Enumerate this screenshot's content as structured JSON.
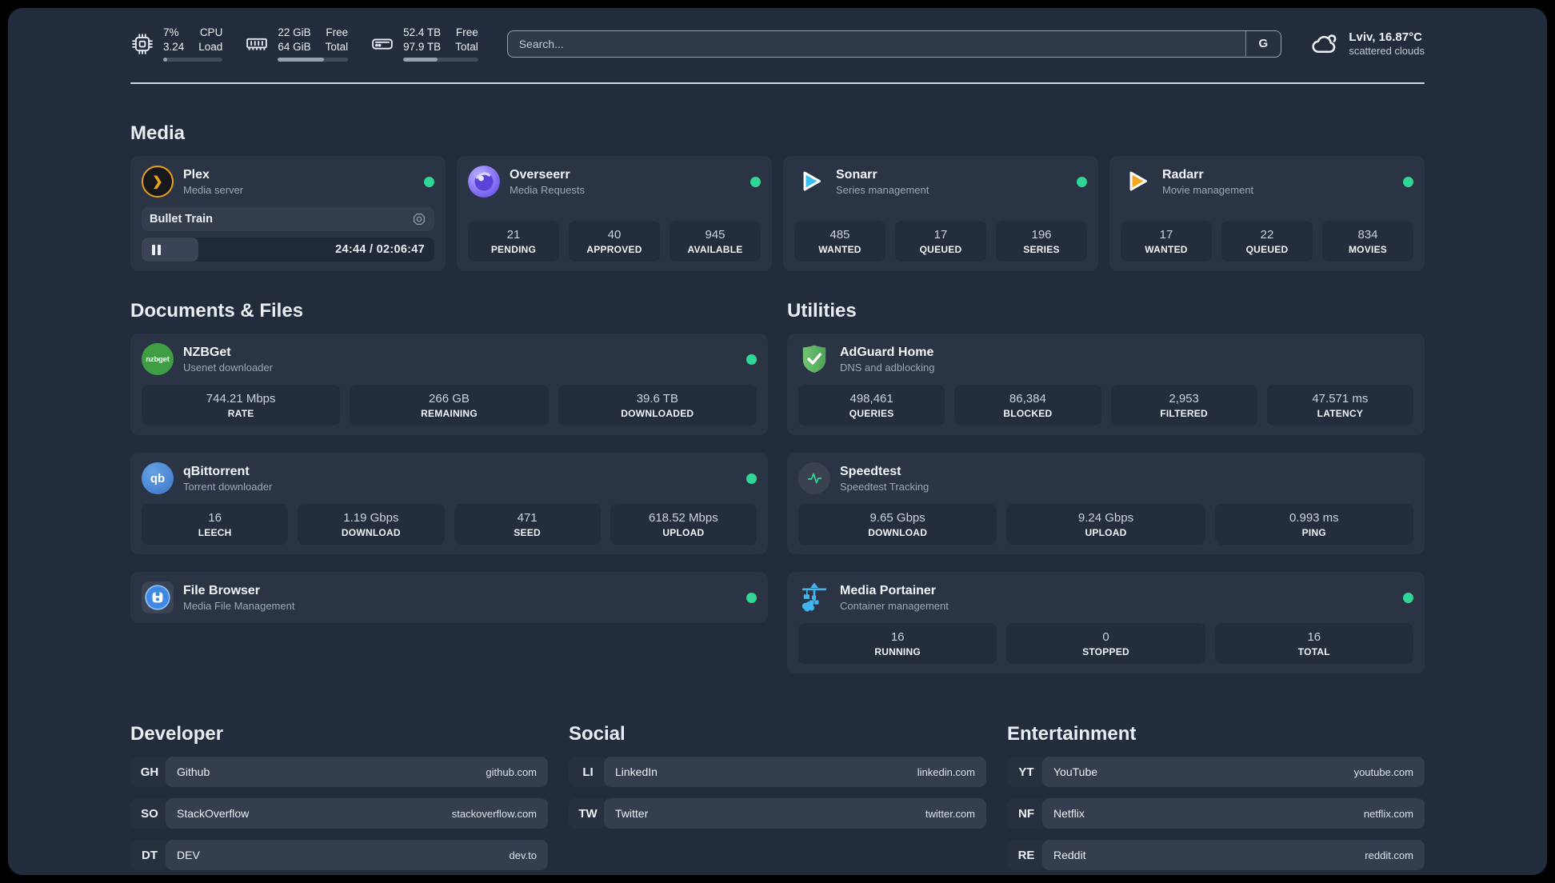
{
  "colors": {
    "background": "#222c3c",
    "card": "#2b3445",
    "stat_box": "#242d3c",
    "status_online_green": "#2fd695",
    "bar_fill": "#97a1b2",
    "plex_amber": "#e8a11b",
    "sonarr_blue": "#39c0f0",
    "radarr_amber": "#f7a823",
    "portainer_blue": "#41b5e9"
  },
  "header": {
    "cpu": {
      "value": "7%",
      "sub": "3.24",
      "label": "CPU",
      "sublabel": "Load",
      "progress": 7
    },
    "memory": {
      "value": "22 GiB",
      "sub": "64 GiB",
      "label": "Free",
      "sublabel": "Total",
      "progress": 66
    },
    "disk": {
      "value": "52.4 TB",
      "sub": "97.9 TB",
      "label": "Free",
      "sublabel": "Total",
      "progress": 46
    },
    "search": {
      "placeholder": "Search...",
      "button": "G"
    },
    "weather": {
      "location": "Lviv, 16.87°C",
      "condition": "scattered clouds"
    }
  },
  "sections": {
    "media": {
      "title": "Media",
      "cards": [
        {
          "name": "Plex",
          "desc": "Media server",
          "online": true,
          "icon": "plex-icon",
          "player": {
            "title": "Bullet Train",
            "time": "24:44 / 02:06:47",
            "progress": 19.5
          }
        },
        {
          "name": "Overseerr",
          "desc": "Media Requests",
          "online": true,
          "icon": "overseerr-icon",
          "stats": [
            {
              "value": "21",
              "label": "PENDING"
            },
            {
              "value": "40",
              "label": "APPROVED"
            },
            {
              "value": "945",
              "label": "AVAILABLE"
            }
          ]
        },
        {
          "name": "Sonarr",
          "desc": "Series management",
          "online": true,
          "icon": "sonarr-icon",
          "stats": [
            {
              "value": "485",
              "label": "WANTED"
            },
            {
              "value": "17",
              "label": "QUEUED"
            },
            {
              "value": "196",
              "label": "SERIES"
            }
          ]
        },
        {
          "name": "Radarr",
          "desc": "Movie management",
          "online": true,
          "icon": "radarr-icon",
          "stats": [
            {
              "value": "17",
              "label": "WANTED"
            },
            {
              "value": "22",
              "label": "QUEUED"
            },
            {
              "value": "834",
              "label": "MOVIES"
            }
          ]
        }
      ]
    },
    "documents": {
      "title": "Documents & Files",
      "cards": [
        {
          "name": "NZBGet",
          "desc": "Usenet downloader",
          "online": true,
          "icon": "nzbget-icon",
          "icon_text": "nzbget",
          "stats": [
            {
              "value": "744.21 Mbps",
              "label": "RATE"
            },
            {
              "value": "266 GB",
              "label": "REMAINING"
            },
            {
              "value": "39.6 TB",
              "label": "DOWNLOADED"
            }
          ]
        },
        {
          "name": "qBittorrent",
          "desc": "Torrent downloader",
          "online": true,
          "icon": "qbittorrent-icon",
          "icon_text": "qb",
          "stats": [
            {
              "value": "16",
              "label": "LEECH"
            },
            {
              "value": "1.19 Gbps",
              "label": "DOWNLOAD"
            },
            {
              "value": "471",
              "label": "SEED"
            },
            {
              "value": "618.52 Mbps",
              "label": "UPLOAD"
            }
          ]
        },
        {
          "name": "File Browser",
          "desc": "Media File Management",
          "online": true,
          "icon": "filebrowser-icon"
        }
      ]
    },
    "utilities": {
      "title": "Utilities",
      "cards": [
        {
          "name": "AdGuard Home",
          "desc": "DNS and adblocking",
          "icon": "adguard-icon",
          "stats": [
            {
              "value": "498,461",
              "label": "QUERIES"
            },
            {
              "value": "86,384",
              "label": "BLOCKED"
            },
            {
              "value": "2,953",
              "label": "FILTERED"
            },
            {
              "value": "47.571 ms",
              "label": "LATENCY"
            }
          ]
        },
        {
          "name": "Speedtest",
          "desc": "Speedtest Tracking",
          "icon": "speedtest-icon",
          "stats": [
            {
              "value": "9.65 Gbps",
              "label": "DOWNLOAD"
            },
            {
              "value": "9.24 Gbps",
              "label": "UPLOAD"
            },
            {
              "value": "0.993 ms",
              "label": "PING"
            }
          ]
        },
        {
          "name": "Media Portainer",
          "desc": "Container management",
          "online": true,
          "icon": "portainer-icon",
          "stats": [
            {
              "value": "16",
              "label": "RUNNING"
            },
            {
              "value": "0",
              "label": "STOPPED"
            },
            {
              "value": "16",
              "label": "TOTAL"
            }
          ]
        }
      ]
    },
    "developer": {
      "title": "Developer",
      "links": [
        {
          "abbr": "GH",
          "name": "Github",
          "url": "github.com"
        },
        {
          "abbr": "SO",
          "name": "StackOverflow",
          "url": "stackoverflow.com"
        },
        {
          "abbr": "DT",
          "name": "DEV",
          "url": "dev.to"
        }
      ]
    },
    "social": {
      "title": "Social",
      "links": [
        {
          "abbr": "LI",
          "name": "LinkedIn",
          "url": "linkedin.com"
        },
        {
          "abbr": "TW",
          "name": "Twitter",
          "url": "twitter.com"
        }
      ]
    },
    "entertainment": {
      "title": "Entertainment",
      "links": [
        {
          "abbr": "YT",
          "name": "YouTube",
          "url": "youtube.com"
        },
        {
          "abbr": "NF",
          "name": "Netflix",
          "url": "netflix.com"
        },
        {
          "abbr": "RE",
          "name": "Reddit",
          "url": "reddit.com"
        }
      ]
    }
  }
}
